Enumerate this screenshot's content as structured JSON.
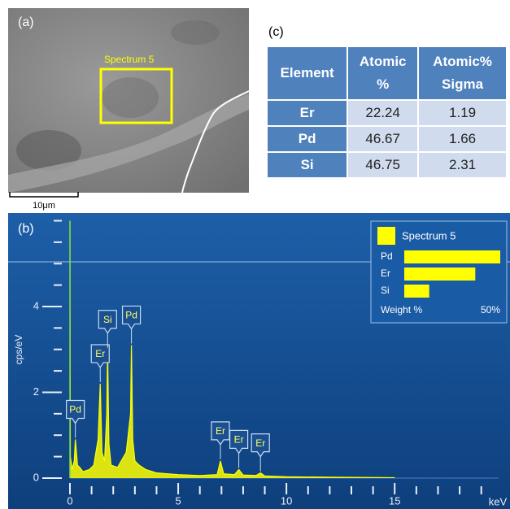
{
  "sem_image": {
    "panel_label": "(a)",
    "region_label": "Spectrum 5",
    "scale_bar": "10μm"
  },
  "table": {
    "panel_label": "(c)",
    "header": [
      [
        "Element"
      ],
      [
        "Atomic",
        "%"
      ],
      [
        "Atomic%",
        "Sigma"
      ]
    ],
    "rows": [
      [
        "Er",
        22.24,
        1.19
      ],
      [
        "Pd",
        46.67,
        1.66
      ],
      [
        "Si",
        46.75,
        2.31
      ]
    ]
  },
  "chart_data": {
    "type": "area",
    "panel_label": "(b)",
    "xlabel": "keV",
    "ylabel": "cps/eV",
    "color": "#ffff00",
    "x": [
      0,
      0.02,
      0.1,
      0.2,
      0.25,
      0.3,
      0.35,
      0.45,
      0.6,
      0.9,
      1.1,
      1.3,
      1.4,
      1.48,
      1.6,
      1.7,
      1.74,
      1.8,
      1.9,
      2.2,
      2.6,
      2.8,
      2.84,
      2.9,
      3.0,
      3.2,
      3.5,
      4,
      5,
      6,
      6.8,
      6.95,
      7.1,
      7.6,
      7.8,
      8.0,
      8.6,
      8.8,
      9.0,
      10,
      12,
      15
    ],
    "values": [
      6.0,
      0.5,
      0.2,
      0.4,
      0.9,
      0.6,
      0.3,
      0.25,
      0.15,
      0.2,
      0.3,
      0.9,
      2.2,
      0.6,
      0.4,
      1.5,
      3.0,
      0.8,
      0.3,
      0.25,
      0.6,
      1.5,
      3.1,
      0.9,
      0.4,
      0.3,
      0.2,
      0.12,
      0.08,
      0.06,
      0.08,
      0.4,
      0.1,
      0.08,
      0.2,
      0.07,
      0.06,
      0.12,
      0.05,
      0.03,
      0.02,
      0.01
    ],
    "xlim": [
      -0.3,
      19.8
    ],
    "ylim": [
      -0.2,
      6.0
    ],
    "xticks": [
      0,
      5,
      10,
      15
    ],
    "yticks": [
      0,
      2,
      4
    ],
    "xminorticks": [
      1,
      2,
      3,
      4,
      6,
      7,
      8,
      9,
      11,
      12,
      13,
      14,
      16,
      17,
      18,
      19
    ],
    "yminorticks": [
      0.5,
      1,
      1.5,
      2.5,
      3,
      3.5,
      4.5,
      5,
      5.5,
      6
    ],
    "annotations": [
      {
        "text": "Pd",
        "x": 0.25
      },
      {
        "text": "Er",
        "x": 1.4
      },
      {
        "text": "Si",
        "x": 1.74
      },
      {
        "text": "Pd",
        "x": 2.84
      },
      {
        "text": "Er",
        "x": 6.95
      },
      {
        "text": "Er",
        "x": 7.8
      },
      {
        "text": "Er",
        "x": 8.8
      }
    ],
    "inset": {
      "title": "Spectrum 5",
      "categories": [
        "Pd",
        "Er",
        "Si"
      ],
      "values": [
        50,
        37,
        13
      ],
      "color": "#ffff00",
      "xlabel": "Weight %",
      "xmax": {
        "value": 50,
        "label": "50%"
      }
    }
  }
}
